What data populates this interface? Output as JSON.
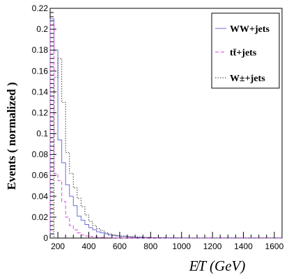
{
  "chart_data": {
    "type": "histogram-step",
    "xlabel": "E̸T (GeV)",
    "ylabel": "Events ( normalized )",
    "xlim": [
      150,
      1650
    ],
    "ylim": [
      0,
      0.22
    ],
    "x_ticks": [
      200,
      400,
      600,
      800,
      1000,
      1200,
      1400,
      1600
    ],
    "y_ticks": [
      0,
      0.02,
      0.04,
      0.06,
      0.08,
      0.1,
      0.12,
      0.14,
      0.16,
      0.18,
      0.2,
      0.22
    ],
    "y_tick_labels": [
      "0",
      "0.02",
      "0.04",
      "0.06",
      "0.08",
      "0.1",
      "0.12",
      "0.14",
      "0.16",
      "0.18",
      "0.2",
      "0.22"
    ],
    "legend_position": "top-right",
    "bin_edges": [
      150,
      175,
      200,
      225,
      250,
      275,
      300,
      325,
      350,
      375,
      400,
      425,
      450,
      475,
      500,
      525,
      550,
      575,
      600,
      650,
      700,
      750,
      800,
      900,
      1000,
      1650
    ],
    "series": [
      {
        "name": "WW+jets",
        "color": "#6b6bd6",
        "dash": "",
        "values": [
          0.21,
          0.18,
          0.094,
          0.072,
          0.051,
          0.04,
          0.031,
          0.021,
          0.017,
          0.013,
          0.01,
          0.008,
          0.006,
          0.005,
          0.004,
          0.003,
          0.0025,
          0.002,
          0.0015,
          0.001,
          0.0007,
          0.0005,
          0.0003,
          0.0002,
          0.0001
        ]
      },
      {
        "name": "tt̄+jets",
        "color": "#e040e0",
        "dash": "5,3",
        "values": [
          0.205,
          0.062,
          0.055,
          0.035,
          0.02,
          0.012,
          0.008,
          0.005,
          0.003,
          0.002,
          0.0015,
          0.001,
          0.0008,
          0.0006,
          0.0004,
          0.0003,
          0.0002,
          0.0001,
          0.0001,
          5e-05,
          0,
          0,
          0,
          0,
          0
        ]
      },
      {
        "name": "W±+jets",
        "color": "#333333",
        "dash": "1.5,2",
        "values": [
          0.0,
          0.154,
          0.172,
          0.13,
          0.082,
          0.062,
          0.048,
          0.038,
          0.03,
          0.022,
          0.016,
          0.012,
          0.009,
          0.007,
          0.005,
          0.004,
          0.003,
          0.0025,
          0.002,
          0.0014,
          0.001,
          0.0007,
          0.0004,
          0.0002,
          0.0001
        ]
      }
    ]
  }
}
